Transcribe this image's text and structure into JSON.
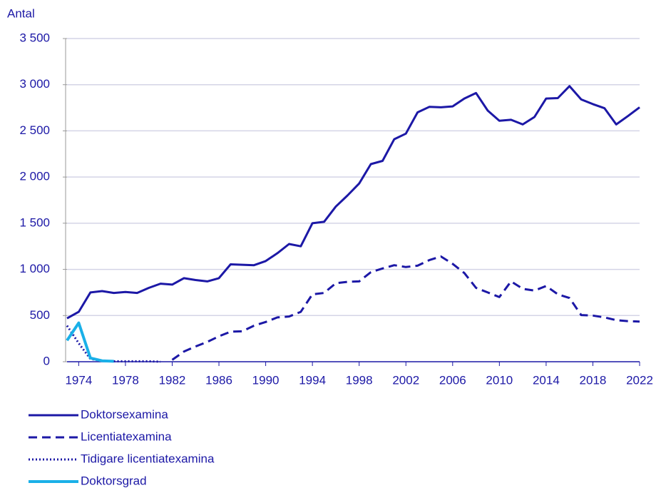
{
  "chart_data": {
    "type": "line",
    "y_label": "Antal",
    "x": [
      1973,
      1974,
      1975,
      1976,
      1977,
      1978,
      1979,
      1980,
      1981,
      1982,
      1983,
      1984,
      1985,
      1986,
      1987,
      1988,
      1989,
      1990,
      1991,
      1992,
      1993,
      1994,
      1995,
      1996,
      1997,
      1998,
      1999,
      2000,
      2001,
      2002,
      2003,
      2004,
      2005,
      2006,
      2007,
      2008,
      2009,
      2010,
      2011,
      2012,
      2013,
      2014,
      2015,
      2016,
      2017,
      2018,
      2019,
      2020,
      2021,
      2022
    ],
    "xlim": [
      1973,
      2022
    ],
    "xticks": [
      1974,
      1978,
      1982,
      1986,
      1990,
      1994,
      1998,
      2002,
      2006,
      2010,
      2014,
      2018,
      2022
    ],
    "ylim": [
      0,
      3500
    ],
    "yticks": [
      0,
      500,
      {
        "value": 1000,
        "label": "1 000"
      },
      {
        "value": 1500,
        "label": "1 500"
      },
      {
        "value": 2000,
        "label": "2 000"
      },
      {
        "value": 2500,
        "label": "2 500"
      },
      {
        "value": 3000,
        "label": "3 000"
      },
      {
        "value": 3500,
        "label": "3 500"
      }
    ],
    "grid": true,
    "series": [
      {
        "name": "Doktorsexamina",
        "color": "#1c18a6",
        "style": "solid",
        "values": [
          470,
          540,
          750,
          765,
          745,
          755,
          745,
          800,
          845,
          835,
          905,
          885,
          870,
          905,
          1055,
          1050,
          1045,
          1090,
          1175,
          1275,
          1250,
          1500,
          1515,
          1680,
          1800,
          1930,
          2140,
          2175,
          2410,
          2470,
          2700,
          2760,
          2755,
          2765,
          2850,
          2910,
          2720,
          2610,
          2620,
          2570,
          2650,
          2850,
          2855,
          2985,
          2840,
          2790,
          2745,
          2570,
          2660,
          2755
        ]
      },
      {
        "name": "Licentiatexamina",
        "color": "#1c18a6",
        "style": "dashed",
        "values": [
          null,
          null,
          null,
          null,
          null,
          null,
          null,
          null,
          null,
          20,
          110,
          165,
          215,
          275,
          325,
          330,
          390,
          430,
          480,
          490,
          540,
          730,
          745,
          850,
          865,
          870,
          970,
          1010,
          1045,
          1025,
          1040,
          1100,
          1140,
          1060,
          960,
          800,
          750,
          700,
          870,
          790,
          770,
          820,
          730,
          690,
          505,
          500,
          480,
          450,
          440,
          435
        ]
      },
      {
        "name": "Tidigare licentiatexamina",
        "color": "#1c18a6",
        "style": "dotted",
        "values": [
          390,
          200,
          30,
          10,
          5,
          5,
          5,
          5,
          0,
          null,
          null,
          null,
          null,
          null,
          null,
          null,
          null,
          null,
          null,
          null,
          null,
          null,
          null,
          null,
          null,
          null,
          null,
          null,
          null,
          null,
          null,
          null,
          null,
          null,
          null,
          null,
          null,
          null,
          null,
          null,
          null,
          null,
          null,
          null,
          null,
          null,
          null,
          null,
          null,
          null
        ]
      },
      {
        "name": "Doktorsgrad",
        "color": "#1ab0e8",
        "style": "solid",
        "values": [
          230,
          420,
          40,
          10,
          5,
          null,
          null,
          null,
          null,
          null,
          null,
          null,
          null,
          null,
          null,
          null,
          null,
          null,
          null,
          null,
          null,
          null,
          null,
          null,
          null,
          null,
          null,
          null,
          null,
          null,
          null,
          null,
          null,
          null,
          null,
          null,
          null,
          null,
          null,
          null,
          null,
          null,
          null,
          null,
          null,
          null,
          null,
          null,
          null,
          null
        ]
      }
    ]
  }
}
